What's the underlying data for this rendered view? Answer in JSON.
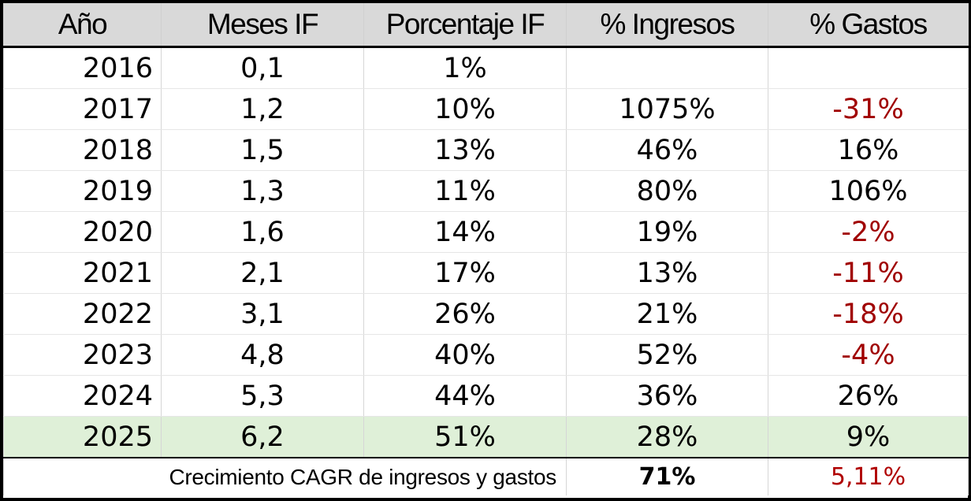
{
  "headers": {
    "year": "Año",
    "months": "Meses IF",
    "percent": "Porcentaje IF",
    "income": "% Ingresos",
    "expenses": "% Gastos"
  },
  "rows": [
    {
      "year": "2016",
      "months": "0,1",
      "percent": "1%",
      "income": "",
      "expenses": ""
    },
    {
      "year": "2017",
      "months": "1,2",
      "percent": "10%",
      "income": "1075%",
      "expenses": "-31%"
    },
    {
      "year": "2018",
      "months": "1,5",
      "percent": "13%",
      "income": "46%",
      "expenses": "16%"
    },
    {
      "year": "2019",
      "months": "1,3",
      "percent": "11%",
      "income": "80%",
      "expenses": "106%"
    },
    {
      "year": "2020",
      "months": "1,6",
      "percent": "14%",
      "income": "19%",
      "expenses": "-2%"
    },
    {
      "year": "2021",
      "months": "2,1",
      "percent": "17%",
      "income": "13%",
      "expenses": "-11%"
    },
    {
      "year": "2022",
      "months": "3,1",
      "percent": "26%",
      "income": "21%",
      "expenses": "-18%"
    },
    {
      "year": "2023",
      "months": "4,8",
      "percent": "40%",
      "income": "52%",
      "expenses": "-4%"
    },
    {
      "year": "2024",
      "months": "5,3",
      "percent": "44%",
      "income": "36%",
      "expenses": "26%"
    },
    {
      "year": "2025",
      "months": "6,2",
      "percent": "51%",
      "income": "28%",
      "expenses": "9%"
    }
  ],
  "footer": {
    "caption": "Crecimiento CAGR de ingresos y gastos",
    "cagr_income": "71%",
    "cagr_expenses": "5,11%"
  },
  "colors": {
    "header_bg": "#d9d9d9",
    "highlight_row_bg": "#dff0d8",
    "negative_text": "#a00000"
  }
}
